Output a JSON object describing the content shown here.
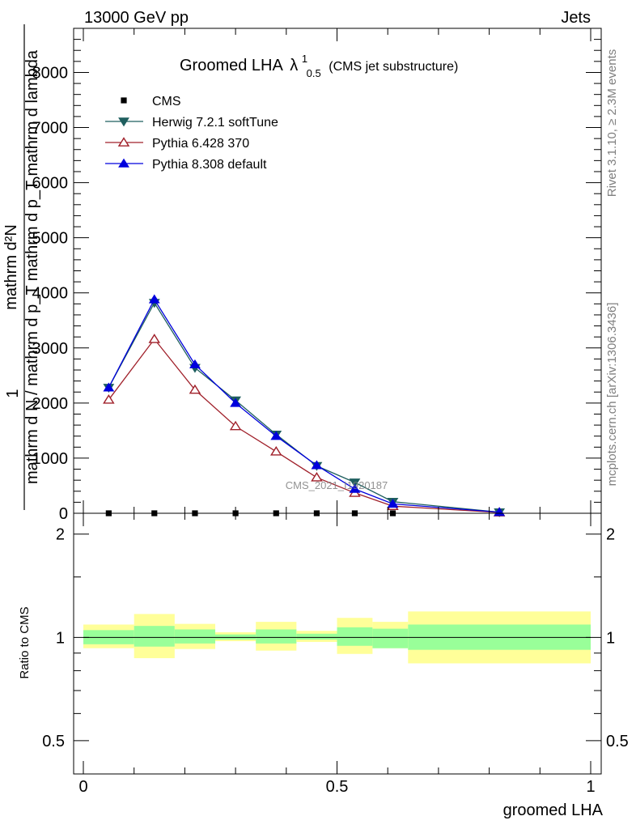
{
  "header": {
    "left": "13000 GeV pp",
    "right": "Jets"
  },
  "side": {
    "top": "Rivet 3.1.10, ≥ 2.3M events",
    "bottom": "mcplots.cern.ch [arXiv:1306.3436]"
  },
  "watermark": "CMS_2021_I1920187",
  "chart_data": [
    {
      "type": "line",
      "panel": "main",
      "title_main": "Groomed LHA",
      "title_lambda": "λ",
      "title_sup": "1",
      "title_sub": "0.5",
      "title_suffix": "(CMS jet substructure)",
      "ylabel": {
        "numerator": "mathrm d²N",
        "num_one": "1",
        "denominator": "mathrm d N / mathrm d p_T mathrm d p_T mathrm d lambda"
      },
      "xlim": [
        0,
        1
      ],
      "ylim": [
        0,
        8800
      ],
      "yticks": [
        0,
        1000,
        2000,
        3000,
        4000,
        5000,
        6000,
        7000,
        8000
      ],
      "ytick_labels": [
        "0",
        "1000",
        "2000",
        "3000",
        "4000",
        "5000",
        "6000",
        "7000",
        "8000"
      ],
      "x": [
        0.05,
        0.14,
        0.22,
        0.3,
        0.38,
        0.46,
        0.535,
        0.61,
        0.82
      ],
      "series": [
        {
          "name": "CMS",
          "color": "#000000",
          "marker": "square",
          "values": [
            0,
            0,
            0,
            0,
            0,
            0,
            0,
            0,
            0
          ]
        },
        {
          "name": "Herwig 7.2.1 softTune",
          "color": "#1f5f5f",
          "marker": "tri-down",
          "values": [
            2280,
            3820,
            2640,
            2050,
            1430,
            860,
            560,
            210,
            20
          ]
        },
        {
          "name": "Pythia 6.428 370",
          "color": "#a0202a",
          "marker": "tri-up-open",
          "values": [
            2060,
            3160,
            2240,
            1580,
            1120,
            650,
            370,
            130,
            15
          ]
        },
        {
          "name": "Pythia 8.308 default",
          "color": "#0000dd",
          "marker": "tri-up",
          "values": [
            2280,
            3880,
            2700,
            2000,
            1400,
            870,
            440,
            170,
            20
          ]
        }
      ]
    },
    {
      "type": "area",
      "panel": "ratio",
      "ylabel": "Ratio to CMS",
      "xlabel": "groomed LHA",
      "xlim": [
        0,
        1
      ],
      "ylim": [
        0.4,
        2.3
      ],
      "scale": "log",
      "yticks": [
        0.5,
        1,
        2
      ],
      "ytick_labels": [
        "0.5",
        "1",
        "2"
      ],
      "xticks": [
        0,
        0.5,
        1
      ],
      "xtick_labels": [
        "0",
        "0.5",
        "1"
      ],
      "band_colors": {
        "inner": "#99ff99",
        "outer": "#ffff99"
      },
      "bins": [
        {
          "lo": 0.0,
          "hi": 0.1,
          "inner": [
            0.955,
            1.05
          ],
          "outer": [
            0.93,
            1.09
          ]
        },
        {
          "lo": 0.1,
          "hi": 0.18,
          "inner": [
            0.94,
            1.08
          ],
          "outer": [
            0.87,
            1.17
          ]
        },
        {
          "lo": 0.18,
          "hi": 0.26,
          "inner": [
            0.96,
            1.055
          ],
          "outer": [
            0.925,
            1.095
          ]
        },
        {
          "lo": 0.26,
          "hi": 0.34,
          "inner": [
            0.985,
            1.02
          ],
          "outer": [
            0.975,
            1.035
          ]
        },
        {
          "lo": 0.34,
          "hi": 0.42,
          "inner": [
            0.96,
            1.055
          ],
          "outer": [
            0.915,
            1.11
          ]
        },
        {
          "lo": 0.42,
          "hi": 0.5,
          "inner": [
            0.985,
            1.025
          ],
          "outer": [
            0.97,
            1.045
          ]
        },
        {
          "lo": 0.5,
          "hi": 0.57,
          "inner": [
            0.945,
            1.07
          ],
          "outer": [
            0.895,
            1.14
          ]
        },
        {
          "lo": 0.57,
          "hi": 0.64,
          "inner": [
            0.93,
            1.06
          ],
          "outer": [
            0.93,
            1.11
          ]
        },
        {
          "lo": 0.64,
          "hi": 1.0,
          "inner": [
            0.92,
            1.09
          ],
          "outer": [
            0.84,
            1.19
          ]
        }
      ]
    }
  ]
}
